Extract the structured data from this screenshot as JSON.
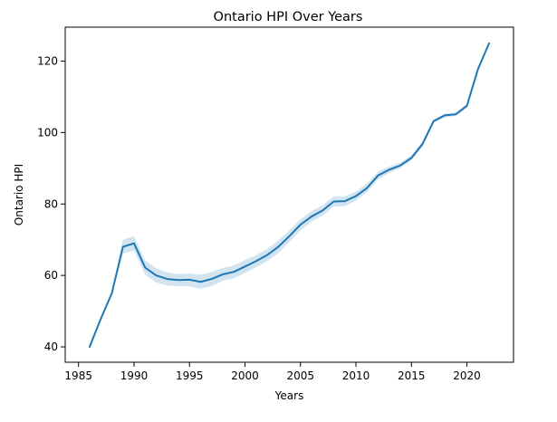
{
  "chart_data": {
    "type": "line",
    "title": "Ontario HPI Over Years",
    "xlabel": "Years",
    "ylabel": "Ontario HPI",
    "xlim": [
      1983.8,
      2024.2
    ],
    "ylim": [
      35.7,
      129.5
    ],
    "xticks": [
      1985,
      1990,
      1995,
      2000,
      2005,
      2010,
      2015,
      2020
    ],
    "yticks": [
      40,
      60,
      80,
      100,
      120
    ],
    "grid": false,
    "legend": "none",
    "line_color": "#1f77b4",
    "band_color": "#1f77b4",
    "series": [
      {
        "x": [
          1986,
          1987,
          1988,
          1989,
          1990,
          1991,
          1992,
          1993,
          1994,
          1995,
          1996,
          1997,
          1998,
          1999,
          2000,
          2001,
          2002,
          2003,
          2004,
          2005,
          2006,
          2007,
          2008,
          2009,
          2010,
          2011,
          2012,
          2013,
          2014,
          2015,
          2016,
          2017,
          2018,
          2019,
          2020,
          2021,
          2022
        ],
        "y": [
          40.0,
          47.8,
          55.0,
          68.0,
          69.0,
          62.2,
          60.0,
          59.0,
          58.7,
          58.8,
          58.2,
          59.0,
          60.3,
          61.0,
          62.5,
          64.0,
          65.7,
          68.0,
          71.0,
          74.2,
          76.5,
          78.2,
          80.7,
          80.8,
          82.2,
          84.5,
          88.0,
          89.6,
          90.8,
          92.9,
          96.8,
          103.2,
          104.8,
          105.1,
          107.5,
          117.8,
          125.0
        ],
        "ci_low": [
          39.8,
          47.6,
          54.8,
          66.0,
          67.0,
          60.2,
          58.0,
          57.2,
          57.0,
          57.0,
          56.2,
          57.0,
          58.5,
          59.2,
          60.7,
          62.3,
          64.0,
          66.2,
          69.4,
          72.6,
          75.0,
          76.7,
          79.3,
          79.4,
          80.9,
          83.3,
          86.9,
          88.7,
          90.0,
          92.2,
          96.1,
          102.7,
          104.3,
          104.6,
          107.0,
          117.3,
          124.7
        ],
        "ci_high": [
          40.2,
          48.0,
          55.2,
          70.0,
          71.0,
          64.2,
          62.0,
          60.8,
          60.4,
          60.6,
          60.2,
          61.0,
          62.1,
          62.8,
          64.3,
          65.7,
          67.4,
          69.8,
          72.6,
          75.8,
          78.0,
          79.7,
          82.1,
          82.2,
          83.5,
          85.7,
          89.1,
          90.5,
          91.6,
          93.6,
          97.5,
          103.7,
          105.3,
          105.6,
          108.0,
          118.3,
          125.3
        ]
      }
    ]
  }
}
